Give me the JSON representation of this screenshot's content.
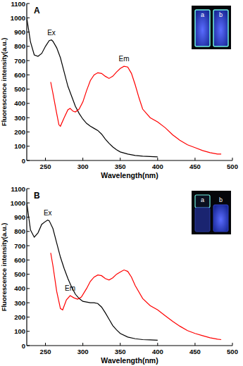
{
  "chart_data": [
    {
      "type": "line",
      "panel": "A",
      "xlabel": "Wavelength(nm)",
      "ylabel": "Fluorescence intensity(a.u.)",
      "xlim": [
        225,
        500
      ],
      "ylim": [
        0,
        1100
      ],
      "xticks": [
        250,
        300,
        350,
        400,
        450,
        500
      ],
      "yticks": [
        0,
        100,
        200,
        300,
        400,
        500,
        600,
        700,
        800,
        900,
        1000,
        1100
      ],
      "inset_labels": [
        "a",
        "b"
      ],
      "series": [
        {
          "name": "Ex",
          "color": "#000000",
          "x": [
            225,
            230,
            235,
            240,
            245,
            250,
            255,
            258,
            260,
            265,
            270,
            275,
            280,
            285,
            290,
            295,
            300,
            305,
            310,
            315,
            320,
            325,
            330,
            335,
            340,
            345,
            350,
            360,
            370,
            380,
            390,
            400
          ],
          "values": [
            1000,
            830,
            740,
            730,
            750,
            800,
            840,
            845,
            835,
            790,
            720,
            620,
            520,
            450,
            380,
            330,
            290,
            260,
            240,
            225,
            210,
            185,
            150,
            120,
            95,
            75,
            60,
            45,
            35,
            30,
            28,
            25
          ]
        },
        {
          "name": "Em",
          "color": "#ff0000",
          "x": [
            257,
            260,
            265,
            268,
            270,
            275,
            280,
            283,
            287,
            290,
            295,
            300,
            305,
            310,
            315,
            320,
            325,
            330,
            335,
            340,
            345,
            350,
            355,
            360,
            365,
            370,
            375,
            380,
            390,
            400,
            410,
            420,
            430,
            440,
            450,
            460,
            470,
            480,
            485
          ],
          "values": [
            550,
            470,
            330,
            250,
            240,
            300,
            355,
            365,
            345,
            340,
            360,
            410,
            490,
            560,
            600,
            615,
            610,
            590,
            575,
            590,
            620,
            645,
            660,
            655,
            610,
            530,
            440,
            360,
            300,
            270,
            230,
            180,
            140,
            110,
            90,
            70,
            55,
            45,
            45
          ]
        }
      ]
    },
    {
      "type": "line",
      "panel": "B",
      "xlabel": "Wavelength(nm)",
      "ylabel": "Fluorescence intensity(a.u.)",
      "xlim": [
        225,
        500
      ],
      "ylim": [
        0,
        1100
      ],
      "xticks": [
        250,
        300,
        350,
        400,
        450,
        500
      ],
      "yticks": [
        0,
        100,
        200,
        300,
        400,
        500,
        600,
        700,
        800,
        900,
        1000,
        1100
      ],
      "inset_labels": [
        "a",
        "b"
      ],
      "series": [
        {
          "name": "Ex",
          "color": "#000000",
          "x": [
            225,
            230,
            235,
            240,
            245,
            250,
            253,
            255,
            260,
            265,
            270,
            275,
            280,
            285,
            290,
            295,
            300,
            305,
            310,
            315,
            320,
            325,
            330,
            335,
            340,
            345,
            350,
            360,
            370,
            380,
            390,
            400
          ],
          "values": [
            1000,
            810,
            760,
            790,
            850,
            870,
            880,
            875,
            820,
            720,
            620,
            540,
            470,
            410,
            360,
            330,
            310,
            305,
            300,
            300,
            295,
            270,
            230,
            185,
            140,
            110,
            85,
            60,
            48,
            42,
            40,
            38
          ]
        },
        {
          "name": "Em",
          "color": "#ff0000",
          "x": [
            257,
            260,
            265,
            270,
            273,
            278,
            283,
            288,
            293,
            298,
            305,
            310,
            315,
            320,
            325,
            330,
            335,
            340,
            345,
            350,
            355,
            360,
            365,
            370,
            380,
            390,
            400,
            410,
            420,
            430,
            440,
            450,
            460,
            470,
            480,
            485
          ],
          "values": [
            650,
            560,
            380,
            260,
            250,
            320,
            350,
            335,
            325,
            340,
            400,
            450,
            480,
            495,
            490,
            470,
            460,
            475,
            500,
            515,
            530,
            520,
            480,
            420,
            330,
            280,
            250,
            210,
            170,
            135,
            105,
            85,
            70,
            55,
            45,
            42
          ]
        }
      ]
    }
  ]
}
